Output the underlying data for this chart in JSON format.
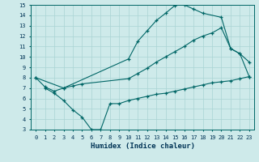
{
  "xlabel": "Humidex (Indice chaleur)",
  "bg_color": "#ceeaea",
  "line_color": "#006666",
  "grid_color": "#aad4d4",
  "xlim": [
    -0.5,
    23.5
  ],
  "ylim": [
    3,
    15
  ],
  "xticks": [
    0,
    1,
    2,
    3,
    4,
    5,
    6,
    7,
    8,
    9,
    10,
    11,
    12,
    13,
    14,
    15,
    16,
    17,
    18,
    19,
    20,
    21,
    22,
    23
  ],
  "yticks": [
    3,
    4,
    5,
    6,
    7,
    8,
    9,
    10,
    11,
    12,
    13,
    14,
    15
  ],
  "line1_x": [
    0,
    1,
    2,
    3,
    10,
    11,
    12,
    13,
    14,
    15,
    16,
    17,
    18,
    20,
    21,
    22,
    23
  ],
  "line1_y": [
    8,
    7.1,
    6.7,
    7.0,
    9.8,
    11.5,
    12.5,
    13.5,
    14.2,
    14.95,
    15.0,
    14.6,
    14.2,
    13.8,
    10.8,
    10.3,
    9.5
  ],
  "line2_x": [
    0,
    3,
    4,
    5,
    10,
    11,
    12,
    13,
    14,
    15,
    16,
    17,
    18,
    19,
    20,
    21,
    22,
    23
  ],
  "line2_y": [
    8.0,
    7.0,
    7.2,
    7.4,
    7.9,
    8.4,
    8.9,
    9.5,
    10.0,
    10.5,
    11.0,
    11.6,
    12.0,
    12.3,
    12.8,
    10.8,
    10.3,
    8.1
  ],
  "line3_x": [
    1,
    2,
    3,
    4,
    5,
    6,
    7,
    8,
    9,
    10,
    11,
    12,
    13,
    14,
    15,
    16,
    17,
    18,
    19,
    20,
    21,
    22,
    23
  ],
  "line3_y": [
    7.0,
    6.5,
    5.8,
    4.9,
    4.2,
    3.0,
    3.0,
    5.5,
    5.5,
    5.8,
    6.0,
    6.2,
    6.4,
    6.5,
    6.7,
    6.9,
    7.1,
    7.3,
    7.5,
    7.6,
    7.7,
    7.9,
    8.1
  ]
}
